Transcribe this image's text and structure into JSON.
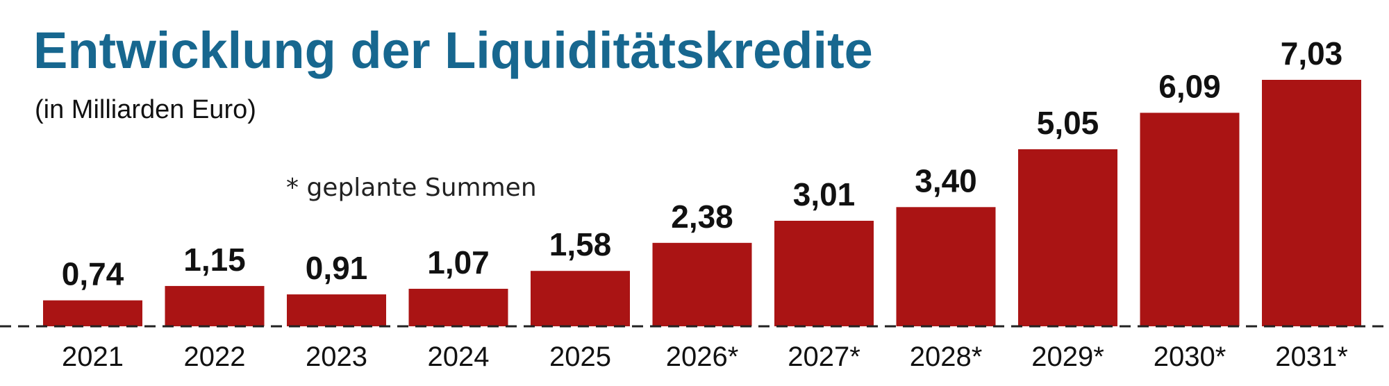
{
  "colors": {
    "title": "#17678f",
    "bar": "#aa1414",
    "text": "#111111",
    "baseline": "#222222"
  },
  "chart_data": {
    "type": "bar",
    "title": "Entwicklung der Liquiditätskredite",
    "subtitle": "(in Milliarden Euro)",
    "note": "* geplante Summen",
    "categories": [
      "2021",
      "2022",
      "2023",
      "2024",
      "2025",
      "2026*",
      "2027*",
      "2028*",
      "2029*",
      "2030*",
      "2031*"
    ],
    "values": [
      0.74,
      1.15,
      0.91,
      1.07,
      1.58,
      2.38,
      3.01,
      3.4,
      5.05,
      6.09,
      7.03
    ],
    "value_labels": [
      "0,74",
      "1,15",
      "0,91",
      "1,07",
      "1,58",
      "2,38",
      "3,01",
      "3,40",
      "5,05",
      "6,09",
      "7,03"
    ],
    "ylim": [
      0,
      7.03
    ],
    "grid": false,
    "legend": "none",
    "baseline": "dashed"
  }
}
